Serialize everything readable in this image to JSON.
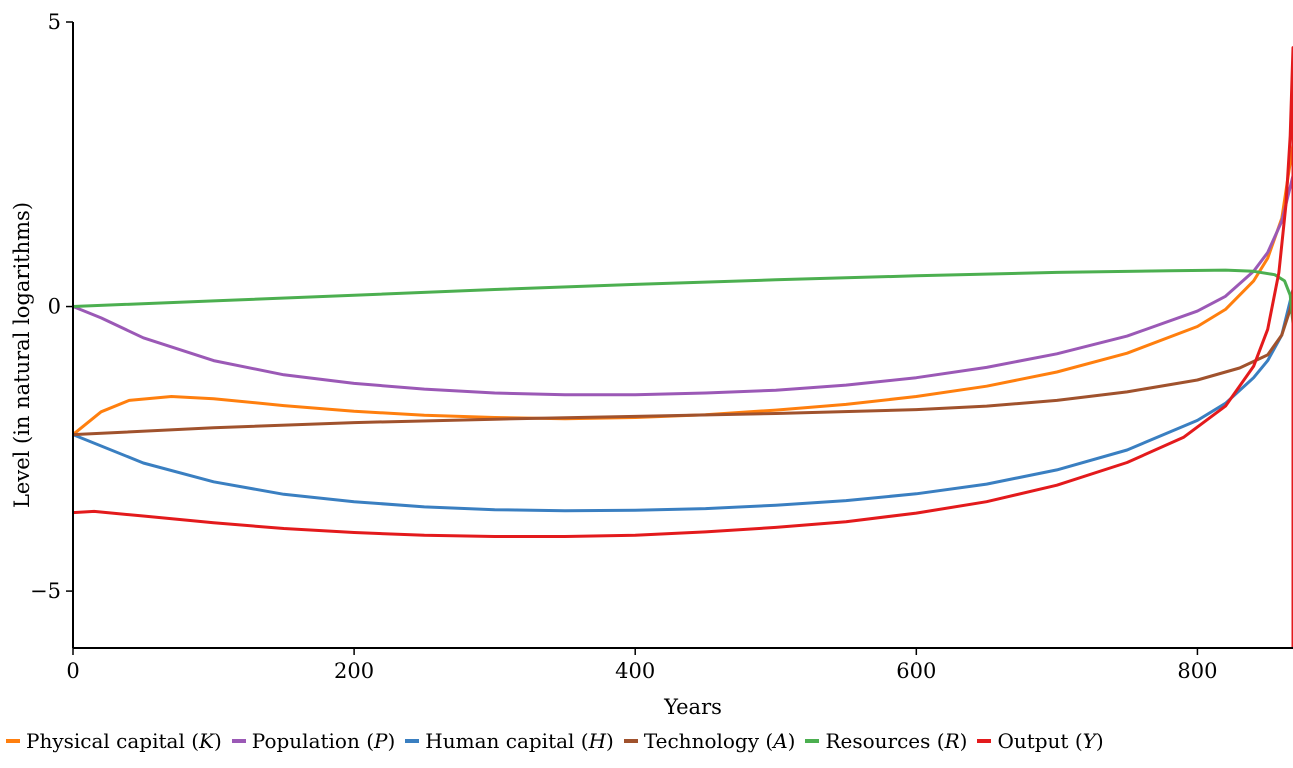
{
  "chart_data": {
    "type": "line",
    "title": "",
    "xlabel": "Years",
    "ylabel": "Level (in natural logarithms)",
    "xlim": [
      0,
      868
    ],
    "ylim": [
      -6,
      5
    ],
    "xticks": [
      0,
      200,
      400,
      600,
      800
    ],
    "yticks": [
      -5,
      0,
      5
    ],
    "grid": false,
    "legend_position": "bottom",
    "series": [
      {
        "name": "Physical capital",
        "symbol": "K",
        "color": "#ff7f0e",
        "points": [
          [
            0,
            -2.25
          ],
          [
            20,
            -1.85
          ],
          [
            40,
            -1.65
          ],
          [
            70,
            -1.58
          ],
          [
            100,
            -1.62
          ],
          [
            150,
            -1.74
          ],
          [
            200,
            -1.84
          ],
          [
            250,
            -1.91
          ],
          [
            300,
            -1.95
          ],
          [
            350,
            -1.97
          ],
          [
            400,
            -1.95
          ],
          [
            450,
            -1.9
          ],
          [
            500,
            -1.82
          ],
          [
            550,
            -1.72
          ],
          [
            600,
            -1.58
          ],
          [
            650,
            -1.4
          ],
          [
            700,
            -1.15
          ],
          [
            750,
            -0.82
          ],
          [
            800,
            -0.35
          ],
          [
            820,
            -0.05
          ],
          [
            840,
            0.45
          ],
          [
            850,
            0.85
          ],
          [
            860,
            1.55
          ],
          [
            868,
            2.85
          ]
        ]
      },
      {
        "name": "Population",
        "symbol": "P",
        "color": "#9b59b6",
        "points": [
          [
            0,
            0
          ],
          [
            20,
            -0.2
          ],
          [
            50,
            -0.55
          ],
          [
            100,
            -0.95
          ],
          [
            150,
            -1.2
          ],
          [
            200,
            -1.35
          ],
          [
            250,
            -1.45
          ],
          [
            300,
            -1.52
          ],
          [
            350,
            -1.55
          ],
          [
            400,
            -1.55
          ],
          [
            450,
            -1.52
          ],
          [
            500,
            -1.47
          ],
          [
            550,
            -1.38
          ],
          [
            600,
            -1.25
          ],
          [
            650,
            -1.07
          ],
          [
            700,
            -0.83
          ],
          [
            750,
            -0.52
          ],
          [
            800,
            -0.08
          ],
          [
            820,
            0.18
          ],
          [
            840,
            0.62
          ],
          [
            850,
            0.95
          ],
          [
            860,
            1.5
          ],
          [
            868,
            2.3
          ]
        ]
      },
      {
        "name": "Human capital",
        "symbol": "H",
        "color": "#3a7fc1",
        "points": [
          [
            0,
            -2.25
          ],
          [
            50,
            -2.75
          ],
          [
            100,
            -3.08
          ],
          [
            150,
            -3.3
          ],
          [
            200,
            -3.43
          ],
          [
            250,
            -3.52
          ],
          [
            300,
            -3.57
          ],
          [
            350,
            -3.59
          ],
          [
            400,
            -3.58
          ],
          [
            450,
            -3.55
          ],
          [
            500,
            -3.49
          ],
          [
            550,
            -3.41
          ],
          [
            600,
            -3.29
          ],
          [
            650,
            -3.12
          ],
          [
            700,
            -2.87
          ],
          [
            750,
            -2.52
          ],
          [
            800,
            -2.0
          ],
          [
            820,
            -1.7
          ],
          [
            840,
            -1.25
          ],
          [
            850,
            -0.95
          ],
          [
            860,
            -0.5
          ],
          [
            868,
            0.3
          ]
        ]
      },
      {
        "name": "Technology",
        "symbol": "A",
        "color": "#a0522d",
        "points": [
          [
            0,
            -2.25
          ],
          [
            100,
            -2.13
          ],
          [
            200,
            -2.04
          ],
          [
            300,
            -1.98
          ],
          [
            400,
            -1.93
          ],
          [
            500,
            -1.88
          ],
          [
            600,
            -1.81
          ],
          [
            650,
            -1.75
          ],
          [
            700,
            -1.65
          ],
          [
            750,
            -1.5
          ],
          [
            800,
            -1.29
          ],
          [
            830,
            -1.08
          ],
          [
            850,
            -0.85
          ],
          [
            860,
            -0.5
          ],
          [
            866,
            -0.05
          ],
          [
            868,
            0.3
          ]
        ]
      },
      {
        "name": "Resources",
        "symbol": "R",
        "color": "#4caf50",
        "points": [
          [
            0,
            0
          ],
          [
            100,
            0.1
          ],
          [
            200,
            0.2
          ],
          [
            300,
            0.3
          ],
          [
            400,
            0.39
          ],
          [
            500,
            0.47
          ],
          [
            600,
            0.54
          ],
          [
            700,
            0.6
          ],
          [
            780,
            0.63
          ],
          [
            820,
            0.64
          ],
          [
            840,
            0.62
          ],
          [
            855,
            0.56
          ],
          [
            862,
            0.45
          ],
          [
            866,
            0.2
          ],
          [
            868,
            -0.3
          ]
        ]
      },
      {
        "name": "Output",
        "symbol": "Y",
        "color": "#e31a1c",
        "points": [
          [
            0,
            -3.62
          ],
          [
            15,
            -3.6
          ],
          [
            50,
            -3.68
          ],
          [
            100,
            -3.8
          ],
          [
            150,
            -3.9
          ],
          [
            200,
            -3.97
          ],
          [
            250,
            -4.02
          ],
          [
            300,
            -4.04
          ],
          [
            350,
            -4.04
          ],
          [
            400,
            -4.02
          ],
          [
            450,
            -3.96
          ],
          [
            500,
            -3.88
          ],
          [
            550,
            -3.78
          ],
          [
            600,
            -3.63
          ],
          [
            650,
            -3.43
          ],
          [
            700,
            -3.14
          ],
          [
            750,
            -2.74
          ],
          [
            790,
            -2.3
          ],
          [
            820,
            -1.75
          ],
          [
            840,
            -1.05
          ],
          [
            850,
            -0.4
          ],
          [
            858,
            0.6
          ],
          [
            863,
            1.8
          ],
          [
            866,
            3.0
          ],
          [
            868,
            4.55
          ],
          [
            868,
            -6.0
          ]
        ]
      }
    ]
  }
}
